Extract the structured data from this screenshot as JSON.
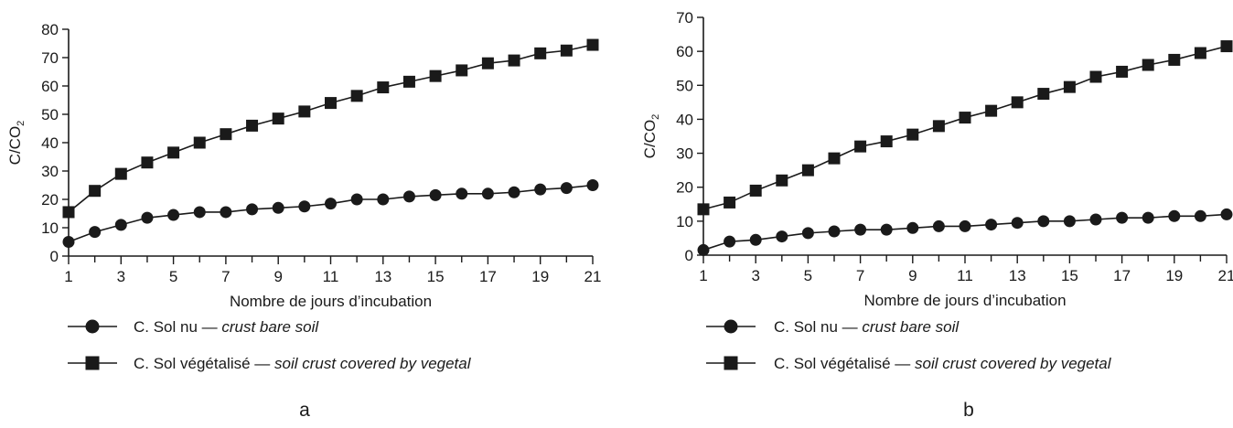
{
  "chart_data": [
    {
      "type": "line",
      "panel_label": "a",
      "xlabel": "Nombre de jours d’incubation",
      "ylabel": "C/CO₂",
      "ylabel_main": "C/CO",
      "ylabel_sub": "2",
      "xlim": [
        1,
        21
      ],
      "ylim": [
        0,
        80
      ],
      "yticks": [
        0,
        10,
        20,
        30,
        40,
        50,
        60,
        70,
        80
      ],
      "xtick_labels": [
        1,
        3,
        5,
        7,
        9,
        11,
        13,
        15,
        17,
        19,
        21
      ],
      "x": [
        1,
        2,
        3,
        4,
        5,
        6,
        7,
        8,
        9,
        10,
        11,
        12,
        13,
        14,
        15,
        16,
        17,
        18,
        19,
        20,
        21
      ],
      "series": [
        {
          "name": "C. Sol nu — crust bare soil",
          "name_main": "C. Sol nu — ",
          "name_italic": "crust bare soil",
          "marker": "circle",
          "values": [
            5,
            8.5,
            11,
            13.5,
            14.5,
            15.5,
            15.5,
            16.5,
            17,
            17.5,
            18.5,
            20,
            20,
            21,
            21.5,
            22,
            22,
            22.5,
            23.5,
            24,
            25
          ]
        },
        {
          "name": "C. Sol végétalisé — soil crust covered by vegetal",
          "name_main": "C. Sol végétalisé — ",
          "name_italic": "soil crust covered by vegetal",
          "marker": "square",
          "values": [
            15.5,
            23,
            29,
            33,
            36.5,
            40,
            43,
            46,
            48.5,
            51,
            54,
            56.5,
            59.5,
            61.5,
            63.5,
            65.5,
            68,
            69,
            71.5,
            72.5,
            74.5
          ]
        }
      ]
    },
    {
      "type": "line",
      "panel_label": "b",
      "xlabel": "Nombre de jours d’incubation",
      "ylabel": "C/CO₂",
      "ylabel_main": "C/CO",
      "ylabel_sub": "2",
      "xlim": [
        1,
        21
      ],
      "ylim": [
        0,
        70
      ],
      "yticks": [
        0,
        10,
        20,
        30,
        40,
        50,
        60,
        70
      ],
      "xtick_labels": [
        1,
        3,
        5,
        7,
        9,
        11,
        13,
        15,
        17,
        19,
        21
      ],
      "x": [
        1,
        2,
        3,
        4,
        5,
        6,
        7,
        8,
        9,
        10,
        11,
        12,
        13,
        14,
        15,
        16,
        17,
        18,
        19,
        20,
        21
      ],
      "series": [
        {
          "name": "C. Sol nu — crust bare soil",
          "name_main": "C. Sol nu — ",
          "name_italic": "crust bare soil",
          "marker": "circle",
          "values": [
            1.5,
            4,
            4.5,
            5.5,
            6.5,
            7,
            7.5,
            7.5,
            8,
            8.5,
            8.5,
            9,
            9.5,
            10,
            10,
            10.5,
            11,
            11,
            11.5,
            11.5,
            12
          ]
        },
        {
          "name": "C. Sol végétalisé — soil crust covered by vegetal",
          "name_main": "C. Sol végétalisé — ",
          "name_italic": "soil crust covered by vegetal",
          "marker": "square",
          "values": [
            13.5,
            15.5,
            19,
            22,
            25,
            28.5,
            32,
            33.5,
            35.5,
            38,
            40.5,
            42.5,
            45,
            47.5,
            49.5,
            52.5,
            54,
            56,
            57.5,
            59.5,
            61.5
          ]
        }
      ]
    }
  ]
}
